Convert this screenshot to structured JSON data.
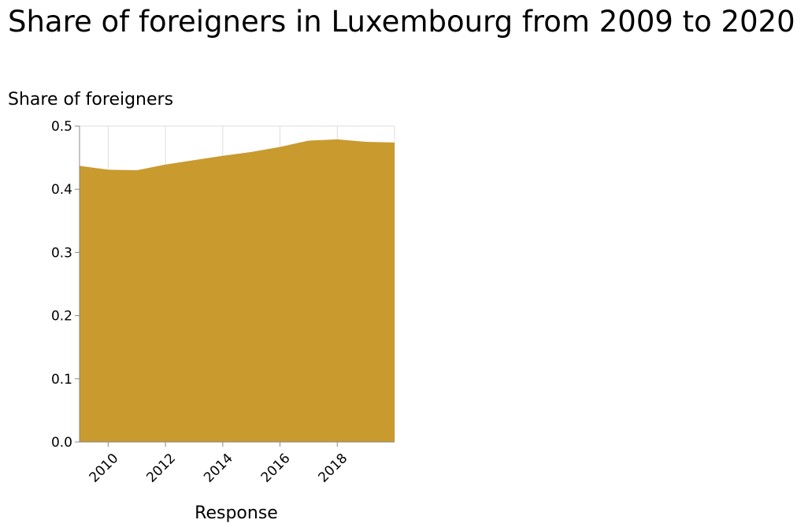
{
  "chart_data": {
    "type": "area",
    "title": "Share of foreigners in Luxembourg from 2009 to 2020",
    "xlabel": "Response",
    "ylabel": "Share of foreigners",
    "x": [
      2009,
      2010,
      2011,
      2012,
      2013,
      2014,
      2015,
      2016,
      2017,
      2018,
      2019,
      2020
    ],
    "series": [
      {
        "values": [
          0.437,
          0.431,
          0.43,
          0.439,
          0.446,
          0.453,
          0.459,
          0.467,
          0.477,
          0.479,
          0.475,
          0.474
        ]
      }
    ],
    "xlim": [
      2009,
      2020
    ],
    "ylim": [
      0,
      0.5
    ],
    "x_ticks": [
      "2010",
      "2012",
      "2014",
      "2016",
      "2018"
    ],
    "y_ticks": [
      "0.0",
      "0.1",
      "0.2",
      "0.3",
      "0.4",
      "0.5"
    ],
    "grid": true,
    "fill_color": "#c99a2e",
    "grid_color": "#dddddd",
    "axis_color": "#888888"
  }
}
